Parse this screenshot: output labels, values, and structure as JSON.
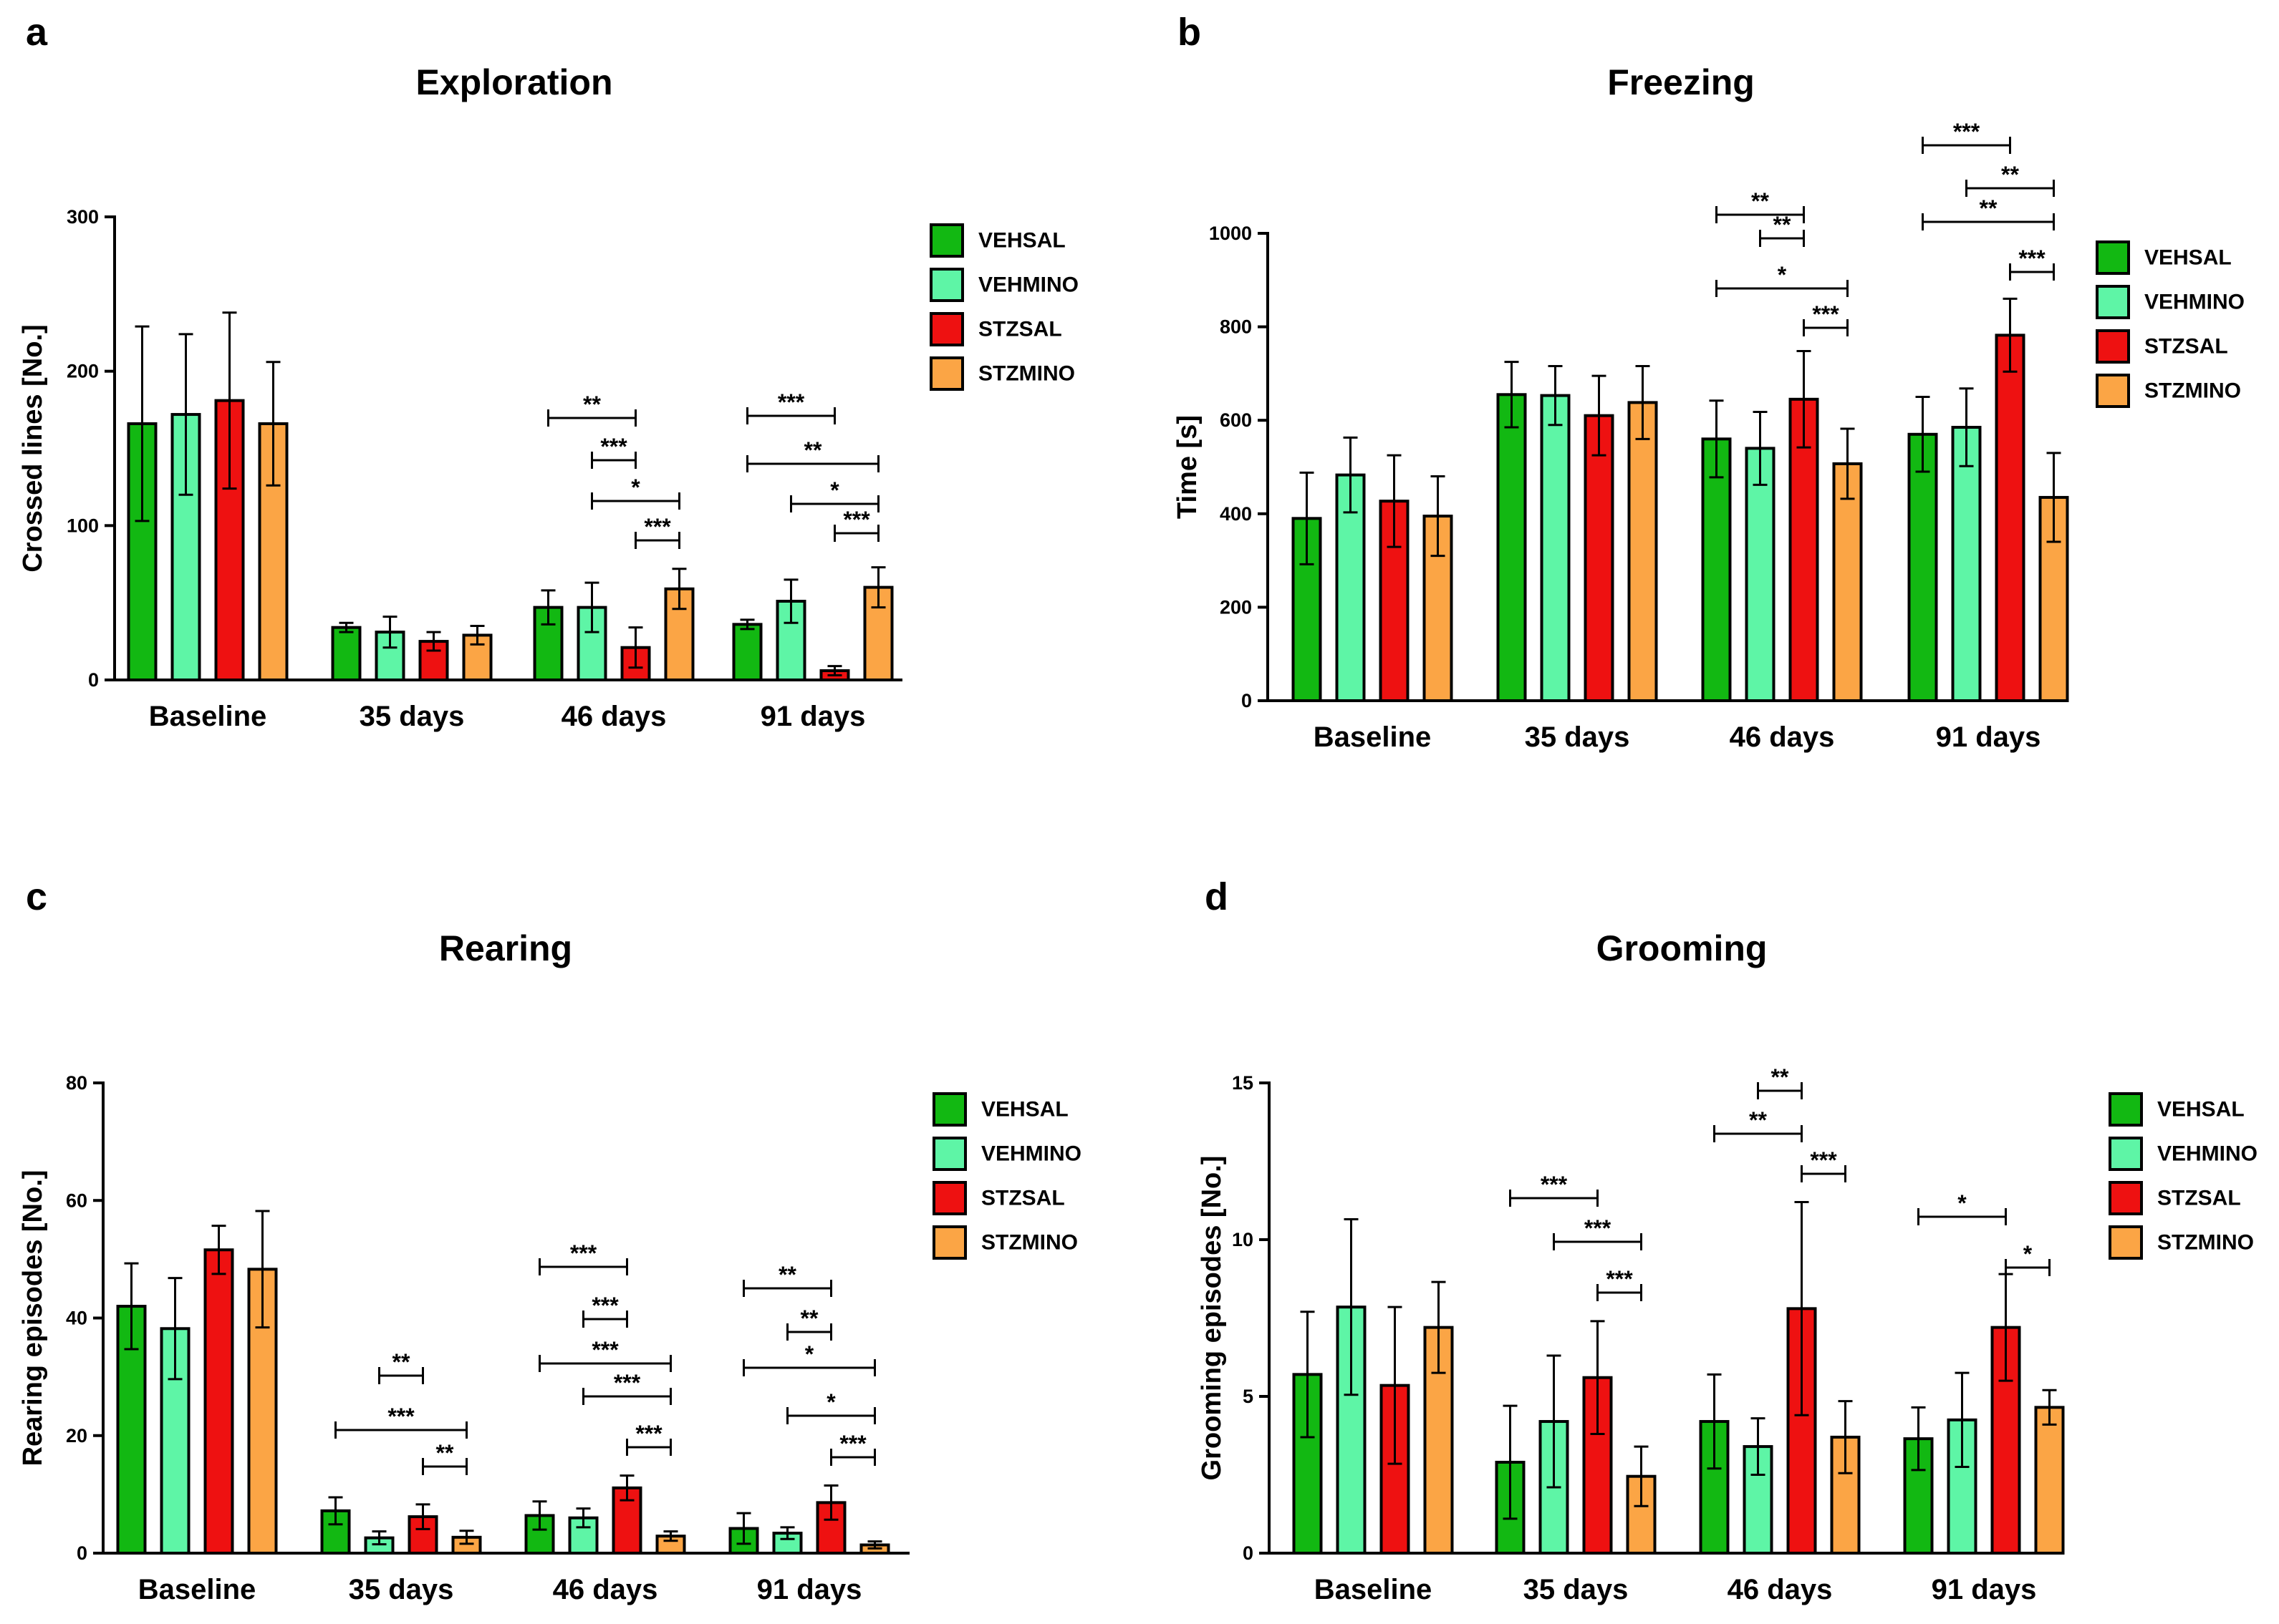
{
  "figure": {
    "panel_letters": [
      "a",
      "b",
      "c",
      "d"
    ],
    "legend": [
      {
        "name": "VEHSAL",
        "color": "#12b812"
      },
      {
        "name": "VEHMINO",
        "color": "#5ef5a6"
      },
      {
        "name": "STZSAL",
        "color": "#ee1111"
      },
      {
        "name": "STZMINO",
        "color": "#fba545"
      }
    ]
  },
  "chart_data": [
    {
      "panel": "a",
      "type": "bar",
      "title": "Exploration",
      "ylabel": "Crossed lines [No.]",
      "xlabel": "",
      "categories": [
        "Baseline",
        "35 days",
        "46 days",
        "91 days"
      ],
      "ylim": [
        0,
        300
      ],
      "yticks": [
        0,
        100,
        200,
        300
      ],
      "series": [
        {
          "name": "VEHSAL",
          "values": [
            166,
            34,
            47,
            36
          ],
          "errors": [
            63,
            3,
            11,
            3
          ]
        },
        {
          "name": "VEHMINO",
          "values": [
            172,
            31,
            47,
            51
          ],
          "errors": [
            52,
            10,
            16,
            14
          ]
        },
        {
          "name": "STZSAL",
          "values": [
            181,
            25,
            21,
            6
          ],
          "errors": [
            57,
            6,
            13,
            3
          ]
        },
        {
          "name": "STZMINO",
          "values": [
            166,
            29,
            59,
            60
          ],
          "errors": [
            40,
            6,
            13,
            13
          ]
        }
      ],
      "significance": [
        {
          "group": 2,
          "from": 0,
          "to": 2,
          "label": "**"
        },
        {
          "group": 2,
          "from": 1,
          "to": 2,
          "label": "***"
        },
        {
          "group": 2,
          "from": 1,
          "to": 3,
          "label": "*"
        },
        {
          "group": 2,
          "from": 2,
          "to": 3,
          "label": "***"
        },
        {
          "group": 3,
          "from": 0,
          "to": 2,
          "label": "***"
        },
        {
          "group": 3,
          "from": 0,
          "to": 3,
          "label": "**"
        },
        {
          "group": 3,
          "from": 1,
          "to": 3,
          "label": "*"
        },
        {
          "group": 3,
          "from": 2,
          "to": 3,
          "label": "***"
        }
      ]
    },
    {
      "panel": "b",
      "type": "bar",
      "title": "Freezing",
      "ylabel": "Time [s]",
      "xlabel": "",
      "categories": [
        "Baseline",
        "35 days",
        "46 days",
        "91 days"
      ],
      "ylim": [
        0,
        1000
      ],
      "yticks": [
        0,
        200,
        400,
        600,
        800,
        1000
      ],
      "series": [
        {
          "name": "VEHSAL",
          "values": [
            390,
            655,
            560,
            570
          ],
          "errors": [
            98,
            70,
            82,
            80
          ]
        },
        {
          "name": "VEHMINO",
          "values": [
            483,
            653,
            540,
            585
          ],
          "errors": [
            80,
            63,
            78,
            83
          ]
        },
        {
          "name": "STZSAL",
          "values": [
            427,
            610,
            645,
            782
          ],
          "errors": [
            98,
            85,
            103,
            78
          ]
        },
        {
          "name": "STZMINO",
          "values": [
            395,
            638,
            507,
            435
          ],
          "errors": [
            85,
            78,
            75,
            95
          ]
        }
      ],
      "significance": [
        {
          "group": 2,
          "from": 0,
          "to": 2,
          "label": "**"
        },
        {
          "group": 2,
          "from": 1,
          "to": 2,
          "label": "**"
        },
        {
          "group": 2,
          "from": 0,
          "to": 3,
          "label": "*"
        },
        {
          "group": 2,
          "from": 2,
          "to": 3,
          "label": "***"
        },
        {
          "group": 3,
          "from": 0,
          "to": 2,
          "label": "***"
        },
        {
          "group": 3,
          "from": 1,
          "to": 3,
          "label": "**"
        },
        {
          "group": 3,
          "from": 0,
          "to": 3,
          "label": "**"
        },
        {
          "group": 3,
          "from": 2,
          "to": 3,
          "label": "***"
        }
      ]
    },
    {
      "panel": "c",
      "type": "bar",
      "title": "Rearing",
      "ylabel": "Rearing episodes [No.]",
      "xlabel": "",
      "categories": [
        "Baseline",
        "35 days",
        "46 days",
        "91 days"
      ],
      "ylim": [
        0,
        80
      ],
      "yticks": [
        0,
        20,
        40,
        60,
        80
      ],
      "series": [
        {
          "name": "VEHSAL",
          "values": [
            42,
            7.2,
            6.4,
            4.2
          ],
          "errors": [
            7.3,
            2.3,
            2.4,
            2.6
          ]
        },
        {
          "name": "VEHMINO",
          "values": [
            38.2,
            2.6,
            6,
            3.4
          ],
          "errors": [
            8.6,
            1.1,
            1.6,
            1
          ]
        },
        {
          "name": "STZSAL",
          "values": [
            51.6,
            6.2,
            11.1,
            8.6
          ],
          "errors": [
            4.1,
            2.1,
            2.1,
            2.9
          ]
        },
        {
          "name": "STZMINO",
          "values": [
            48.3,
            2.7,
            2.9,
            1.4
          ],
          "errors": [
            9.9,
            1.1,
            0.8,
            0.6
          ]
        }
      ],
      "significance": [
        {
          "group": 1,
          "from": 1,
          "to": 2,
          "label": "**"
        },
        {
          "group": 1,
          "from": 0,
          "to": 3,
          "label": "***"
        },
        {
          "group": 1,
          "from": 2,
          "to": 3,
          "label": "**"
        },
        {
          "group": 2,
          "from": 0,
          "to": 2,
          "label": "***"
        },
        {
          "group": 2,
          "from": 1,
          "to": 2,
          "label": "***"
        },
        {
          "group": 2,
          "from": 0,
          "to": 3,
          "label": "***"
        },
        {
          "group": 2,
          "from": 1,
          "to": 3,
          "label": "***"
        },
        {
          "group": 2,
          "from": 2,
          "to": 3,
          "label": "***"
        },
        {
          "group": 3,
          "from": 0,
          "to": 2,
          "label": "**"
        },
        {
          "group": 3,
          "from": 1,
          "to": 2,
          "label": "**"
        },
        {
          "group": 3,
          "from": 0,
          "to": 3,
          "label": "*"
        },
        {
          "group": 3,
          "from": 1,
          "to": 3,
          "label": "*"
        },
        {
          "group": 3,
          "from": 2,
          "to": 3,
          "label": "***"
        }
      ]
    },
    {
      "panel": "d",
      "type": "bar",
      "title": "Grooming",
      "ylabel": "Grooming episodes [No.]",
      "xlabel": "",
      "categories": [
        "Baseline",
        "35 days",
        "46 days",
        "91 days"
      ],
      "ylim": [
        0,
        15
      ],
      "yticks": [
        0,
        5,
        10,
        15
      ],
      "series": [
        {
          "name": "VEHSAL",
          "values": [
            5.7,
            2.9,
            4.2,
            3.65
          ],
          "errors": [
            2,
            1.8,
            1.5,
            1
          ]
        },
        {
          "name": "VEHMINO",
          "values": [
            7.85,
            4.2,
            3.4,
            4.25
          ],
          "errors": [
            2.8,
            2.1,
            0.9,
            1.5
          ]
        },
        {
          "name": "STZSAL",
          "values": [
            5.35,
            5.6,
            7.8,
            7.2
          ],
          "errors": [
            2.5,
            1.8,
            3.4,
            1.7
          ]
        },
        {
          "name": "STZMINO",
          "values": [
            7.2,
            2.45,
            3.7,
            4.65
          ],
          "errors": [
            1.45,
            0.95,
            1.15,
            0.55
          ]
        }
      ],
      "significance": [
        {
          "group": 1,
          "from": 0,
          "to": 2,
          "label": "***"
        },
        {
          "group": 1,
          "from": 1,
          "to": 3,
          "label": "***"
        },
        {
          "group": 1,
          "from": 2,
          "to": 3,
          "label": "***"
        },
        {
          "group": 2,
          "from": 1,
          "to": 2,
          "label": "**"
        },
        {
          "group": 2,
          "from": 0,
          "to": 2,
          "label": "**"
        },
        {
          "group": 2,
          "from": 2,
          "to": 3,
          "label": "***"
        },
        {
          "group": 3,
          "from": 0,
          "to": 2,
          "label": "*"
        },
        {
          "group": 3,
          "from": 2,
          "to": 3,
          "label": "*"
        }
      ]
    }
  ]
}
